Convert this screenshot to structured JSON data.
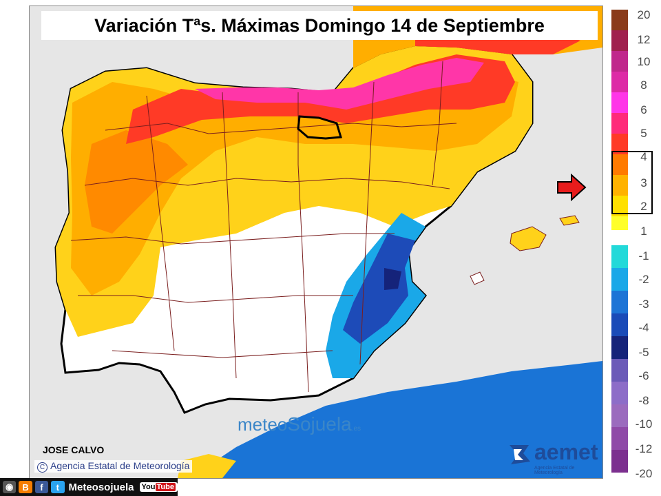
{
  "title": "Variación Tªs. Máximas Domingo 14 de Septiembre",
  "author": "JOSE CALVO",
  "agency_credit": "Agencia Estatal de Meteorología",
  "watermark": {
    "part1": "meteo",
    "part2": "Sojuela",
    "part3": ".es"
  },
  "aemet_logo": {
    "text": "aemet",
    "subtext": "Agencia Estatal de Meteorología"
  },
  "legend": {
    "labels": [
      "20",
      "12",
      "10",
      "8",
      "6",
      "5",
      "4",
      "3",
      "2",
      "1",
      "-1",
      "-2",
      "-3",
      "-4",
      "-5",
      "-6",
      "-8",
      "-10",
      "-12",
      "-20"
    ],
    "warm_colors": [
      "#8a3b1a",
      "#a0204e",
      "#c0278c",
      "#dd2aa6",
      "#ff36e8",
      "#ff2b7a",
      "#ff3a26",
      "#ff7a00",
      "#ffb200",
      "#ffe000",
      "#ffff2a"
    ],
    "cold_colors": [
      "#22d9d9",
      "#1aa8e8",
      "#1d74d6",
      "#1a4bb8",
      "#15237a",
      "#6b5ab8",
      "#8d6dc8",
      "#9b6bbe",
      "#8f4aa8",
      "#7c2f8f"
    ],
    "highlight_range": "2 – 4"
  },
  "social_bar": {
    "name": "Meteosojuela",
    "youtube": "You"
  },
  "colors": {
    "title_bg": "#ffffff",
    "sea": "#e6e6e6",
    "border": "#000000",
    "province_lines": "#7a1e1e"
  }
}
